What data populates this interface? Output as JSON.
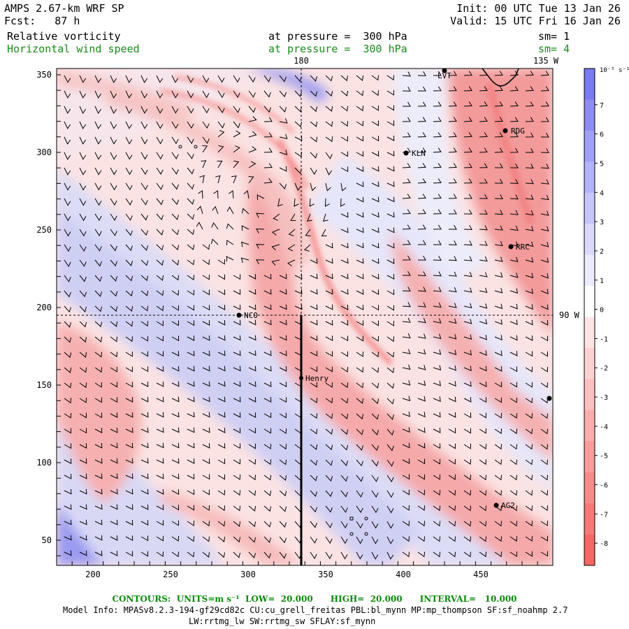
{
  "header": {
    "model": "AMPS 2.67-km WRF SP",
    "init": "Init: 00 UTC Tue 13 Jan 26",
    "forecast": "Fcst:   87 h",
    "valid": "Valid: 15 UTC Fri 16 Jan 26",
    "field1": "Relative vorticity",
    "field1_level": "at pressure =  300 hPa",
    "field1_sm": "sm= 1",
    "field2": "Horizontal wind speed",
    "field2_level": "at pressure =  300 hPa",
    "field2_sm": "sm= 4"
  },
  "map": {
    "x_ticks": [
      "200",
      "250",
      "300",
      "350",
      "400",
      "450"
    ],
    "y_ticks": [
      "350",
      "300",
      "250",
      "200",
      "150",
      "100",
      "50"
    ],
    "lon_180": "180",
    "lon_135w": "135 W",
    "lat_90w": "90 W",
    "stations": [
      {
        "name": "LVT"
      },
      {
        "name": "RDG"
      },
      {
        "name": "KLN"
      },
      {
        "name": "RRC"
      },
      {
        "name": "NCO"
      },
      {
        "name": "Henry"
      },
      {
        "name": "AG2"
      }
    ]
  },
  "colorbar": {
    "units": "10⁻⁵ s⁻¹",
    "labels": [
      "7",
      "6",
      "5",
      "4",
      "3",
      "2",
      "1",
      "0",
      "-1",
      "-2",
      "-3",
      "-4",
      "-5",
      "-6",
      "-7",
      "-8"
    ],
    "colors": [
      "#7a7af2",
      "#8d8df4",
      "#a0a0f6",
      "#b3b3f8",
      "#c6c6fa",
      "#d9d9fc",
      "#ececfe",
      "#ffffff",
      "#fde4e4",
      "#fcd2d2",
      "#fbc0c0",
      "#faaeae",
      "#f99c9c",
      "#f88a8a",
      "#f77878",
      "#f66666"
    ]
  },
  "footer": {
    "contours": "CONTOURS:  UNITS=m s⁻¹  LOW=  20.000      HIGH=  20.000      INTERVAL=   10.000",
    "model_info_1": "Model Info: MPASv8.2.3-194-gf29cd82c CU:cu_grell_freitas PBL:bl_mynn MP:mp_thompson SF:sf_noahmp 2.7",
    "model_info_2": "LW:rrtmg_lw SW:rrtmg_sw SFLAY:sf_mynn"
  }
}
